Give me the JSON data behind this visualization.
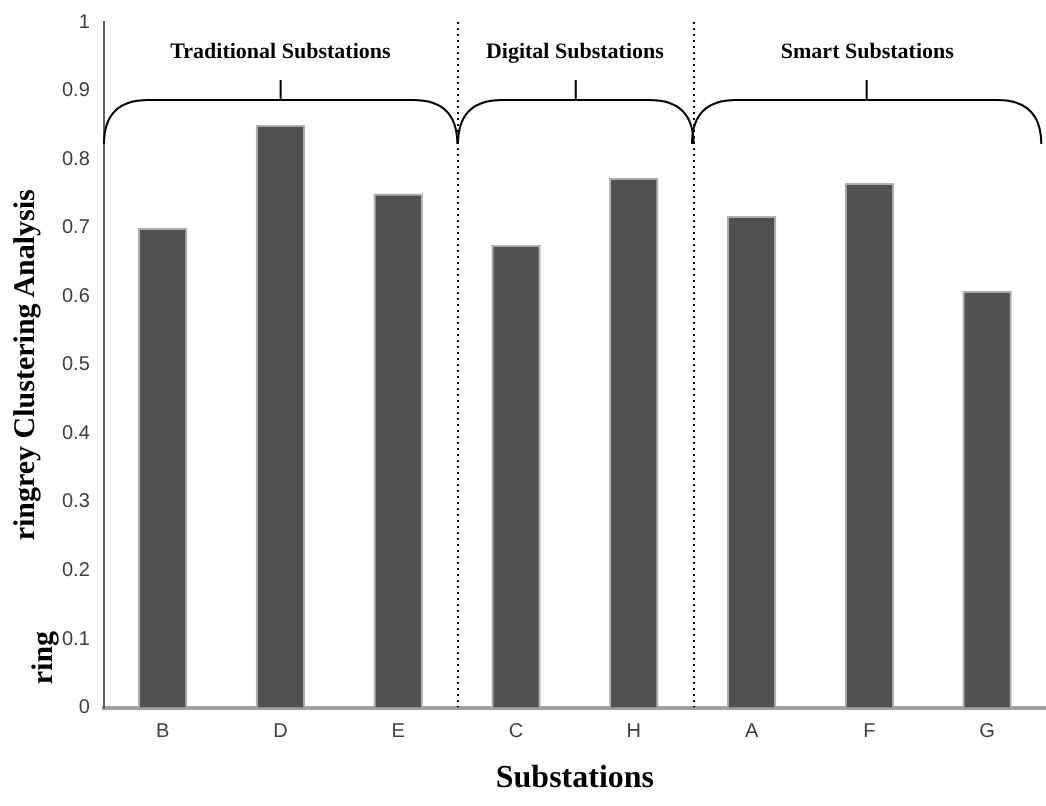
{
  "chart_data": {
    "type": "bar",
    "xlabel": "Substations",
    "ylabel": "ringrey Clustering Analysis",
    "categories": [
      "B",
      "D",
      "E",
      "C",
      "H",
      "A",
      "F",
      "G"
    ],
    "values": [
      0.7,
      0.85,
      0.75,
      0.675,
      0.773,
      0.717,
      0.765,
      0.608
    ],
    "color": "#505050",
    "ylim": [
      0,
      1
    ],
    "yticks": [
      0,
      0.1,
      0.2,
      0.3,
      0.4,
      0.5,
      0.6,
      0.7,
      0.8,
      0.9,
      1
    ],
    "grid": false,
    "legend": false,
    "annotations": [
      "ring",
      "Traditional Substations",
      "Digital Substations",
      "Smart Substations"
    ]
  }
}
